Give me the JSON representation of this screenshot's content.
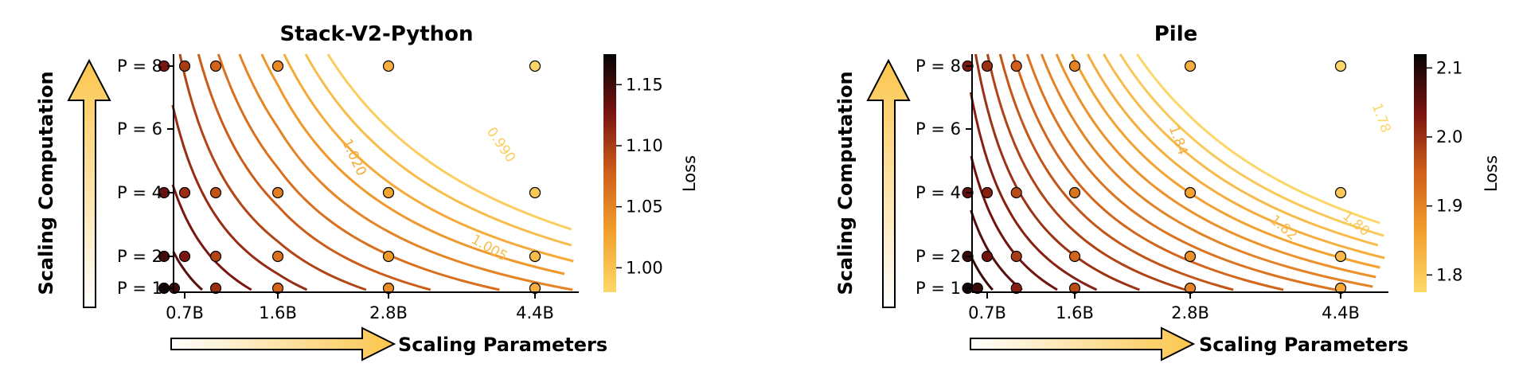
{
  "chart_data": [
    {
      "type": "contour",
      "title": "Stack-V2-Python",
      "xlabel": "Scaling Parameters",
      "ylabel": "Scaling Computation",
      "x_ticks": [
        "0.7B",
        "1.6B",
        "2.8B",
        "4.4B"
      ],
      "x_tick_values": [
        0.7,
        1.6,
        2.8,
        4.4
      ],
      "y_ticks": [
        "P = 1",
        "P = 2",
        "P = 4",
        "P = 6",
        "P = 8"
      ],
      "y_tick_values": [
        1,
        2,
        4,
        6,
        8
      ],
      "colorbar_label": "Loss",
      "colorbar_ticks": [
        "1.00",
        "1.05",
        "1.10",
        "1.15"
      ],
      "colorbar_tick_values": [
        1.0,
        1.05,
        1.1,
        1.15
      ],
      "colorbar_range": [
        0.98,
        1.175
      ],
      "contour_labels": [
        {
          "text": "1.020",
          "value": 1.02
        },
        {
          "text": "0.990",
          "value": 0.99
        },
        {
          "text": "1.005",
          "value": 1.005
        }
      ],
      "contour_levels": [
        1.155,
        1.14,
        1.125,
        1.11,
        1.095,
        1.08,
        1.065,
        1.05,
        1.035,
        1.02,
        1.005,
        0.99
      ],
      "points": [
        {
          "x": 0.5,
          "P": 1,
          "loss": 1.17
        },
        {
          "x": 0.6,
          "P": 1,
          "loss": 1.15
        },
        {
          "x": 1.0,
          "P": 1,
          "loss": 1.11
        },
        {
          "x": 1.6,
          "P": 1,
          "loss": 1.075
        },
        {
          "x": 2.8,
          "P": 1,
          "loss": 1.045
        },
        {
          "x": 4.4,
          "P": 1,
          "loss": 1.015
        },
        {
          "x": 0.5,
          "P": 2,
          "loss": 1.15
        },
        {
          "x": 0.7,
          "P": 2,
          "loss": 1.125
        },
        {
          "x": 1.0,
          "P": 2,
          "loss": 1.095
        },
        {
          "x": 1.6,
          "P": 2,
          "loss": 1.065
        },
        {
          "x": 2.8,
          "P": 2,
          "loss": 1.035
        },
        {
          "x": 4.4,
          "P": 2,
          "loss": 1.005
        },
        {
          "x": 0.5,
          "P": 4,
          "loss": 1.135
        },
        {
          "x": 0.7,
          "P": 4,
          "loss": 1.11
        },
        {
          "x": 1.0,
          "P": 4,
          "loss": 1.085
        },
        {
          "x": 1.6,
          "P": 4,
          "loss": 1.055
        },
        {
          "x": 2.8,
          "P": 4,
          "loss": 1.025
        },
        {
          "x": 4.4,
          "P": 4,
          "loss": 0.995
        },
        {
          "x": 0.5,
          "P": 8,
          "loss": 1.125
        },
        {
          "x": 0.7,
          "P": 8,
          "loss": 1.1
        },
        {
          "x": 1.0,
          "P": 8,
          "loss": 1.075
        },
        {
          "x": 1.6,
          "P": 8,
          "loss": 1.045
        },
        {
          "x": 2.8,
          "P": 8,
          "loss": 1.015
        },
        {
          "x": 4.4,
          "P": 8,
          "loss": 0.985
        }
      ]
    },
    {
      "type": "contour",
      "title": "Pile",
      "xlabel": "Scaling Parameters",
      "ylabel": "Scaling Computation",
      "x_ticks": [
        "0.7B",
        "1.6B",
        "2.8B",
        "4.4B"
      ],
      "x_tick_values": [
        0.7,
        1.6,
        2.8,
        4.4
      ],
      "y_ticks": [
        "P = 1",
        "P = 2",
        "P = 4",
        "P = 6",
        "P = 8"
      ],
      "y_tick_values": [
        1,
        2,
        4,
        6,
        8
      ],
      "colorbar_label": "Loss",
      "colorbar_ticks": [
        "1.8",
        "1.9",
        "2.0",
        "2.1"
      ],
      "colorbar_tick_values": [
        1.8,
        1.9,
        2.0,
        2.1
      ],
      "colorbar_range": [
        1.775,
        2.12
      ],
      "contour_labels": [
        {
          "text": "1.84",
          "value": 1.84
        },
        {
          "text": "1.82",
          "value": 1.82
        },
        {
          "text": "1.80",
          "value": 1.8
        },
        {
          "text": "1.78",
          "value": 1.78
        }
      ],
      "contour_levels": [
        2.1,
        2.08,
        2.06,
        2.04,
        2.02,
        2.0,
        1.98,
        1.96,
        1.94,
        1.92,
        1.9,
        1.88,
        1.86,
        1.84,
        1.82,
        1.8,
        1.78
      ],
      "points": [
        {
          "x": 0.5,
          "P": 1,
          "loss": 2.11
        },
        {
          "x": 0.6,
          "P": 1,
          "loss": 2.08
        },
        {
          "x": 1.0,
          "P": 1,
          "loss": 2.02
        },
        {
          "x": 1.6,
          "P": 1,
          "loss": 1.97
        },
        {
          "x": 2.8,
          "P": 1,
          "loss": 1.9
        },
        {
          "x": 4.4,
          "P": 1,
          "loss": 1.85
        },
        {
          "x": 0.5,
          "P": 2,
          "loss": 2.08
        },
        {
          "x": 0.7,
          "P": 2,
          "loss": 2.04
        },
        {
          "x": 1.0,
          "P": 2,
          "loss": 1.99
        },
        {
          "x": 1.6,
          "P": 2,
          "loss": 1.94
        },
        {
          "x": 2.8,
          "P": 2,
          "loss": 1.88
        },
        {
          "x": 4.4,
          "P": 2,
          "loss": 1.82
        },
        {
          "x": 0.5,
          "P": 4,
          "loss": 2.05
        },
        {
          "x": 0.7,
          "P": 4,
          "loss": 2.02
        },
        {
          "x": 1.0,
          "P": 4,
          "loss": 1.97
        },
        {
          "x": 1.6,
          "P": 4,
          "loss": 1.92
        },
        {
          "x": 2.8,
          "P": 4,
          "loss": 1.86
        },
        {
          "x": 4.4,
          "P": 4,
          "loss": 1.8
        },
        {
          "x": 0.5,
          "P": 8,
          "loss": 2.03
        },
        {
          "x": 0.7,
          "P": 8,
          "loss": 2.0
        },
        {
          "x": 1.0,
          "P": 8,
          "loss": 1.95
        },
        {
          "x": 1.6,
          "P": 8,
          "loss": 1.9
        },
        {
          "x": 2.8,
          "P": 8,
          "loss": 1.84
        },
        {
          "x": 4.4,
          "P": 8,
          "loss": 1.78
        }
      ]
    }
  ]
}
